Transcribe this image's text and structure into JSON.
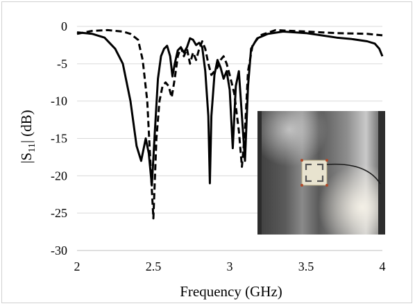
{
  "chart_data": {
    "type": "line",
    "title": "",
    "xlabel": "Frequency (GHz)",
    "ylabel_main": "|S",
    "ylabel_sub": "11",
    "ylabel_tail": "| (dB)",
    "xlim": [
      2,
      4
    ],
    "ylim": [
      -30,
      0
    ],
    "xticks": [
      2,
      2.5,
      3,
      3.5,
      4
    ],
    "xtick_labels": [
      "2",
      "2.5",
      "3",
      "3.5",
      "4"
    ],
    "yticks": [
      0,
      -5,
      -10,
      -15,
      -20,
      -25,
      -30
    ],
    "ytick_labels": [
      "0",
      "-5",
      "-10",
      "-15",
      "-20",
      "-25",
      "-30"
    ],
    "grid": "horizontal",
    "legend": "none",
    "series": [
      {
        "style": "solid",
        "color": "#000000",
        "points": [
          [
            2.0,
            -0.8
          ],
          [
            2.1,
            -1.0
          ],
          [
            2.18,
            -1.5
          ],
          [
            2.25,
            -3.0
          ],
          [
            2.3,
            -5.0
          ],
          [
            2.35,
            -10.0
          ],
          [
            2.39,
            -16.0
          ],
          [
            2.42,
            -18.0
          ],
          [
            2.45,
            -15.0
          ],
          [
            2.47,
            -17.0
          ],
          [
            2.49,
            -21.3
          ],
          [
            2.51,
            -14.0
          ],
          [
            2.53,
            -7.0
          ],
          [
            2.55,
            -4.0
          ],
          [
            2.57,
            -3.0
          ],
          [
            2.59,
            -2.6
          ],
          [
            2.61,
            -4.0
          ],
          [
            2.625,
            -6.7
          ],
          [
            2.64,
            -5.0
          ],
          [
            2.66,
            -3.2
          ],
          [
            2.68,
            -2.8
          ],
          [
            2.7,
            -3.5
          ],
          [
            2.72,
            -2.8
          ],
          [
            2.74,
            -1.6
          ],
          [
            2.76,
            -1.8
          ],
          [
            2.78,
            -2.5
          ],
          [
            2.8,
            -2.2
          ],
          [
            2.82,
            -2.8
          ],
          [
            2.84,
            -6.0
          ],
          [
            2.86,
            -12.0
          ],
          [
            2.87,
            -21.0
          ],
          [
            2.88,
            -12.0
          ],
          [
            2.9,
            -6.5
          ],
          [
            2.92,
            -4.5
          ],
          [
            2.94,
            -5.5
          ],
          [
            2.96,
            -7.0
          ],
          [
            2.98,
            -6.0
          ],
          [
            3.0,
            -8.5
          ],
          [
            3.02,
            -16.3
          ],
          [
            3.04,
            -8.0
          ],
          [
            3.06,
            -6.0
          ],
          [
            3.08,
            -12.0
          ],
          [
            3.1,
            -18.0
          ],
          [
            3.12,
            -8.0
          ],
          [
            3.14,
            -3.0
          ],
          [
            3.18,
            -1.6
          ],
          [
            3.25,
            -1.0
          ],
          [
            3.35,
            -0.7
          ],
          [
            3.5,
            -0.9
          ],
          [
            3.6,
            -1.2
          ],
          [
            3.7,
            -1.5
          ],
          [
            3.8,
            -1.7
          ],
          [
            3.9,
            -2.0
          ],
          [
            3.95,
            -2.3
          ],
          [
            3.98,
            -3.0
          ],
          [
            4.0,
            -4.0
          ]
        ]
      },
      {
        "style": "dashed",
        "color": "#000000",
        "points": [
          [
            2.0,
            -1.0
          ],
          [
            2.1,
            -0.6
          ],
          [
            2.2,
            -0.5
          ],
          [
            2.3,
            -0.7
          ],
          [
            2.35,
            -1.0
          ],
          [
            2.4,
            -1.8
          ],
          [
            2.43,
            -4.5
          ],
          [
            2.46,
            -10.0
          ],
          [
            2.48,
            -18.0
          ],
          [
            2.5,
            -25.7
          ],
          [
            2.52,
            -15.0
          ],
          [
            2.54,
            -10.0
          ],
          [
            2.56,
            -8.0
          ],
          [
            2.58,
            -7.5
          ],
          [
            2.6,
            -8.0
          ],
          [
            2.62,
            -9.5
          ],
          [
            2.64,
            -7.0
          ],
          [
            2.66,
            -4.0
          ],
          [
            2.68,
            -2.8
          ],
          [
            2.7,
            -4.0
          ],
          [
            2.72,
            -3.0
          ],
          [
            2.74,
            -5.0
          ],
          [
            2.76,
            -3.5
          ],
          [
            2.78,
            -4.5
          ],
          [
            2.8,
            -3.0
          ],
          [
            2.82,
            -2.0
          ],
          [
            2.84,
            -3.0
          ],
          [
            2.86,
            -5.0
          ],
          [
            2.88,
            -6.5
          ],
          [
            2.9,
            -6.0
          ],
          [
            2.92,
            -5.5
          ],
          [
            2.94,
            -4.5
          ],
          [
            2.96,
            -4.0
          ],
          [
            2.98,
            -5.0
          ],
          [
            3.0,
            -6.5
          ],
          [
            3.03,
            -9.0
          ],
          [
            3.06,
            -14.0
          ],
          [
            3.08,
            -18.8
          ],
          [
            3.1,
            -14.0
          ],
          [
            3.12,
            -6.0
          ],
          [
            3.15,
            -2.5
          ],
          [
            3.2,
            -1.2
          ],
          [
            3.3,
            -0.5
          ],
          [
            3.5,
            -0.7
          ],
          [
            3.7,
            -0.9
          ],
          [
            3.9,
            -1.0
          ],
          [
            4.0,
            -1.2
          ]
        ]
      }
    ]
  },
  "inset": {
    "description_icon": "photo-of-antenna-prototype"
  }
}
